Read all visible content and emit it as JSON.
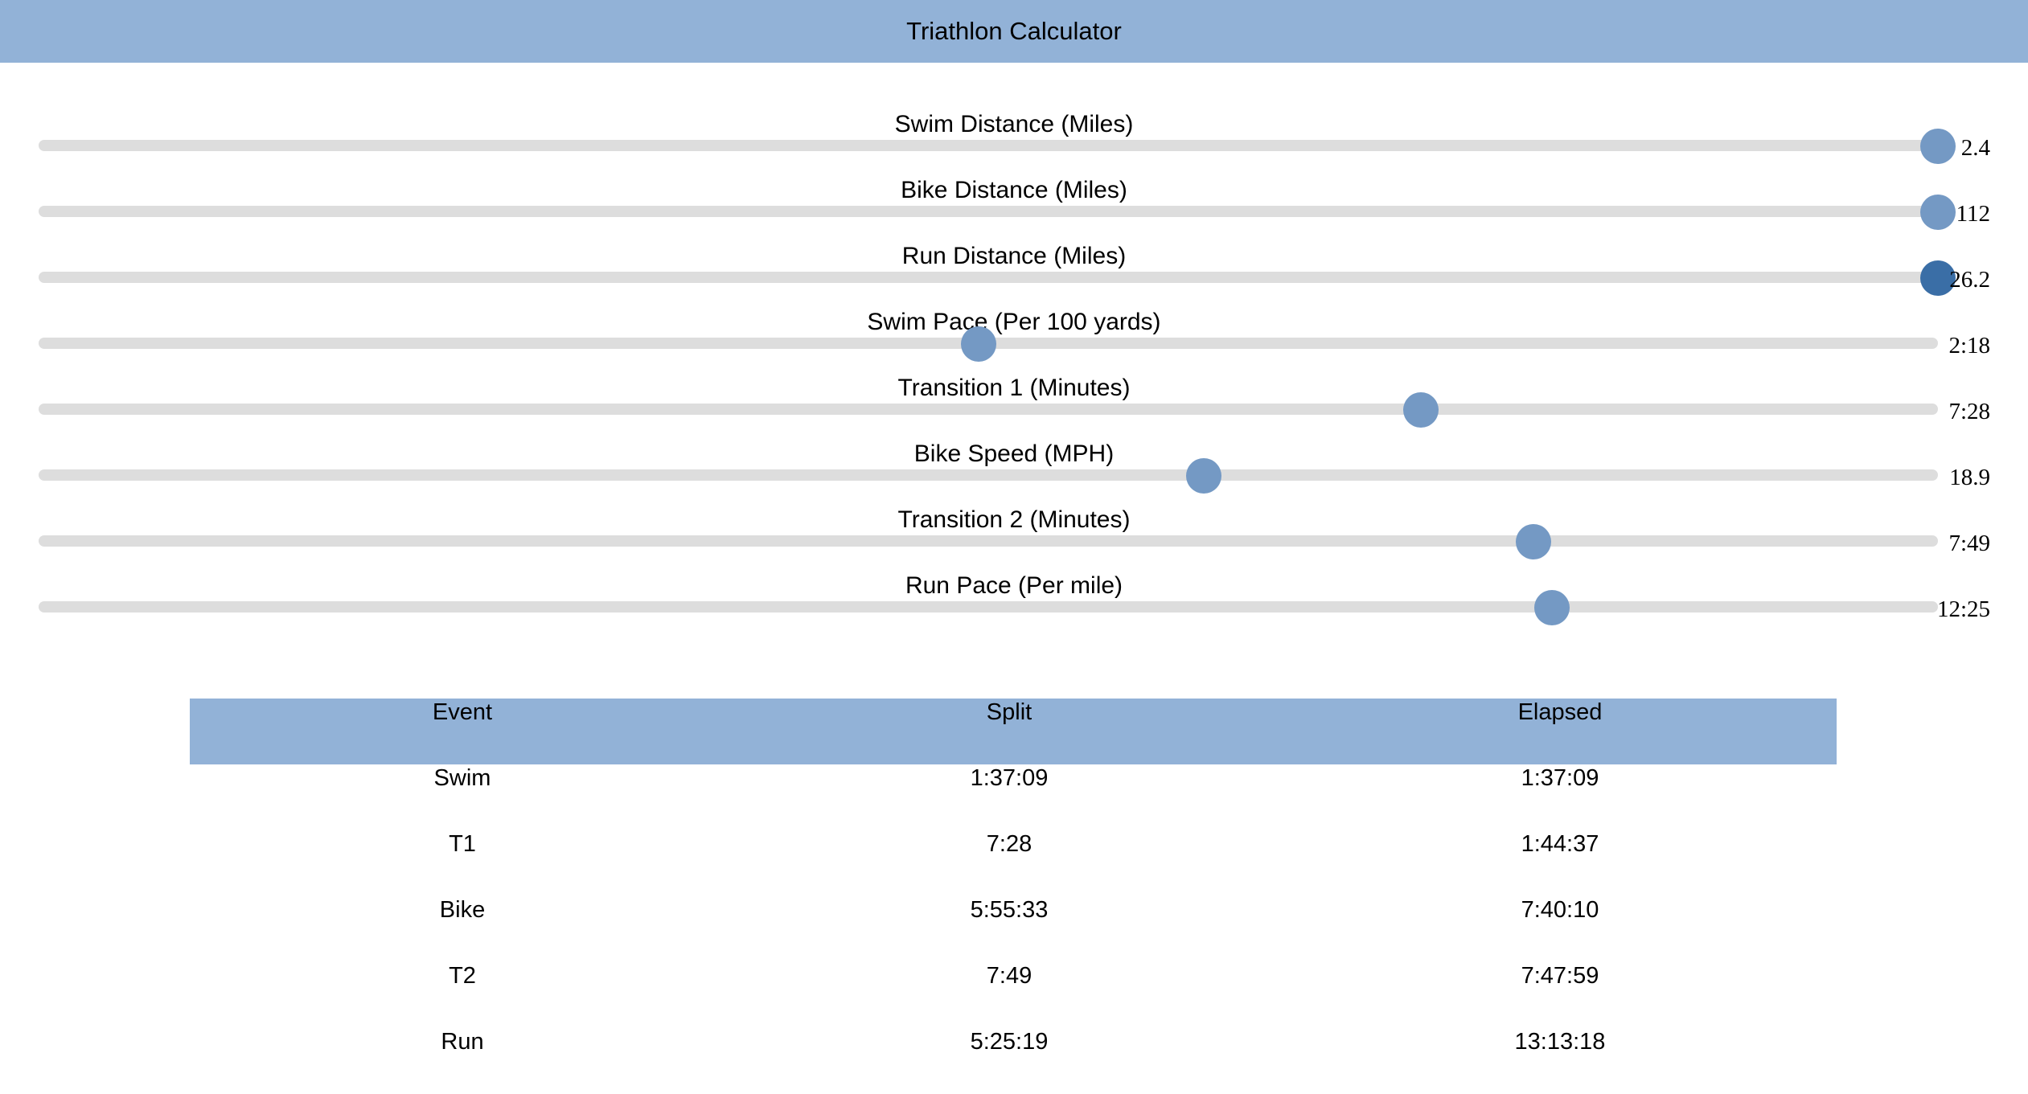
{
  "app": {
    "title": "Triathlon Calculator"
  },
  "sliders": [
    {
      "id": "swim-distance",
      "label": "Swim Distance (Miles)",
      "value": "2.4",
      "fraction": 1.0,
      "active": false
    },
    {
      "id": "bike-distance",
      "label": "Bike Distance (Miles)",
      "value": "112",
      "fraction": 1.0,
      "active": false
    },
    {
      "id": "run-distance",
      "label": "Run Distance (Miles)",
      "value": "26.2",
      "fraction": 1.0,
      "active": true
    },
    {
      "id": "swim-pace",
      "label": "Swim Pace (Per 100 yards)",
      "value": "2:18",
      "fraction": 0.49,
      "active": false
    },
    {
      "id": "transition-1",
      "label": "Transition 1 (Minutes)",
      "value": "7:28",
      "fraction": 0.725,
      "active": false
    },
    {
      "id": "bike-speed",
      "label": "Bike Speed (MPH)",
      "value": "18.9",
      "fraction": 0.61,
      "active": false
    },
    {
      "id": "transition-2",
      "label": "Transition 2 (Minutes)",
      "value": "7:49",
      "fraction": 0.785,
      "active": false
    },
    {
      "id": "run-pace",
      "label": "Run Pace (Per mile)",
      "value": "12:25",
      "fraction": 0.795,
      "active": false
    }
  ],
  "results": {
    "headers": [
      "Event",
      "Split",
      "Elapsed"
    ],
    "rows": [
      [
        "Swim",
        "1:37:09",
        "1:37:09"
      ],
      [
        "T1",
        "7:28",
        "1:44:37"
      ],
      [
        "Bike",
        "5:55:33",
        "7:40:10"
      ],
      [
        "T2",
        "7:49",
        "7:47:59"
      ],
      [
        "Run",
        "5:25:19",
        "13:13:18"
      ]
    ]
  },
  "colors": {
    "header_bg": "#92b2d7",
    "track": "#dddddd",
    "thumb": "#7499c4",
    "thumb_active": "#3a6ea6"
  }
}
